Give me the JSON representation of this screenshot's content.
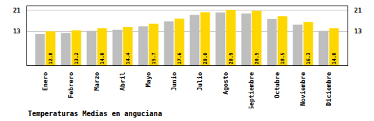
{
  "chart_data": {
    "type": "bar",
    "title": "Temperaturas Medias en anguciana",
    "categories": [
      "Enero",
      "Febrero",
      "Marzo",
      "Abril",
      "Mayo",
      "Junio",
      "Julio",
      "Agosto",
      "Septiembre",
      "Octubre",
      "Noviembre",
      "Diciembre"
    ],
    "series": [
      {
        "color": "#BEBEBE",
        "values": [
          11.8,
          12.2,
          13.0,
          13.4,
          14.7,
          16.6,
          19.0,
          19.9,
          19.5,
          17.5,
          15.3,
          13.0
        ]
      },
      {
        "color": "#FFD700",
        "values": [
          12.8,
          13.2,
          14.0,
          14.4,
          15.7,
          17.6,
          20.0,
          20.9,
          20.5,
          18.5,
          16.3,
          14.0
        ],
        "data_labels": true,
        "value_labels": [
          "12.8",
          "13.2",
          "14.0",
          "14.4",
          "15.7",
          "17.6",
          "20.0",
          "20.9",
          "20.5",
          "18.5",
          "16.3",
          "14.0"
        ]
      }
    ],
    "ylim": [
      0,
      22.5
    ],
    "yticks": [
      12.8,
      20.9
    ],
    "grid": true
  }
}
